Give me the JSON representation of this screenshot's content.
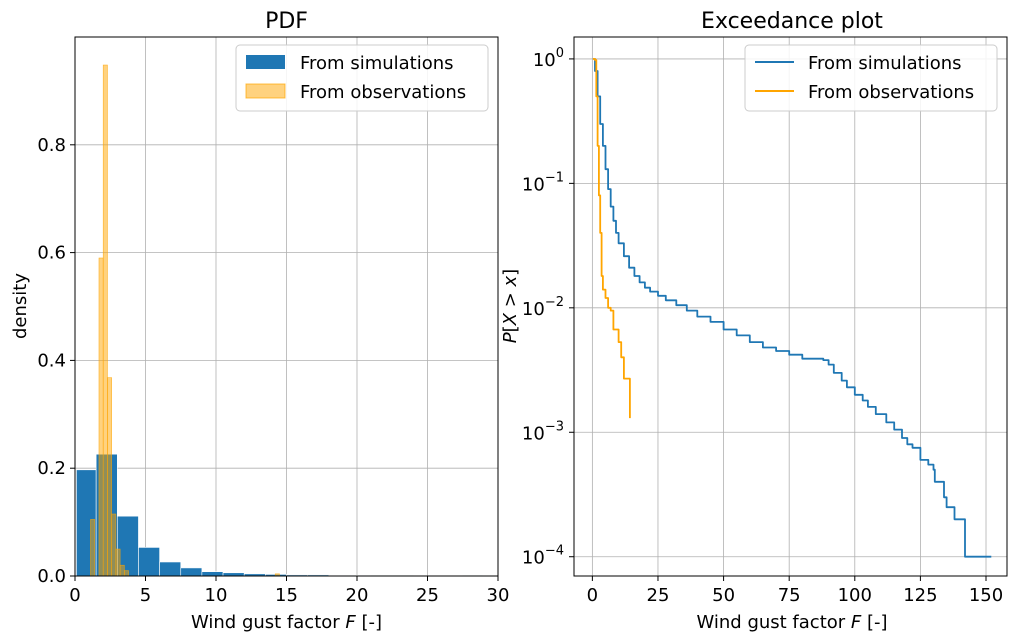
{
  "chart_data": [
    {
      "type": "bar",
      "title": "PDF",
      "xlabel": "Wind gust factor F [-]",
      "ylabel": "density",
      "xlim": [
        0,
        30
      ],
      "ylim": [
        0,
        1.0
      ],
      "xticks": [
        0,
        5,
        10,
        15,
        20,
        25,
        30
      ],
      "xtick_labels": [
        "0",
        "5",
        "10",
        "15",
        "20",
        "25",
        "30"
      ],
      "yticks": [
        0,
        0.2,
        0.4,
        0.6,
        0.8
      ],
      "ytick_labels": [
        "0.0",
        "0.2",
        "0.4",
        "0.6",
        "0.8"
      ],
      "grid": true,
      "legend_position": "top-right",
      "series": [
        {
          "name": "From simulations",
          "color": "#1f77b4",
          "bins": [
            {
              "x0": 0.1,
              "x1": 1.5,
              "y": 0.197
            },
            {
              "x0": 1.5,
              "x1": 3.0,
              "y": 0.226
            },
            {
              "x0": 3.0,
              "x1": 4.5,
              "y": 0.111
            },
            {
              "x0": 4.5,
              "x1": 6.0,
              "y": 0.053
            },
            {
              "x0": 6.0,
              "x1": 7.5,
              "y": 0.026
            },
            {
              "x0": 7.5,
              "x1": 9.0,
              "y": 0.015
            },
            {
              "x0": 9.0,
              "x1": 10.5,
              "y": 0.008
            },
            {
              "x0": 10.5,
              "x1": 12.0,
              "y": 0.006
            },
            {
              "x0": 12.0,
              "x1": 13.5,
              "y": 0.004
            },
            {
              "x0": 13.5,
              "x1": 15.0,
              "y": 0.003
            },
            {
              "x0": 15.0,
              "x1": 16.5,
              "y": 0.002
            },
            {
              "x0": 16.5,
              "x1": 18.0,
              "y": 0.002
            },
            {
              "x0": 18.0,
              "x1": 19.5,
              "y": 0.0015
            },
            {
              "x0": 19.5,
              "x1": 21.0,
              "y": 0.0015
            },
            {
              "x0": 21.0,
              "x1": 22.5,
              "y": 0.001
            },
            {
              "x0": 22.5,
              "x1": 24.0,
              "y": 0.001
            },
            {
              "x0": 27.5,
              "x1": 28.9,
              "y": 0.001
            }
          ]
        },
        {
          "name": "From observations",
          "color": "#ffa500",
          "bins": [
            {
              "x0": 1.1,
              "x1": 1.4,
              "y": 0.105
            },
            {
              "x0": 1.4,
              "x1": 1.7,
              "y": 0.0
            },
            {
              "x0": 1.7,
              "x1": 2.0,
              "y": 0.59
            },
            {
              "x0": 2.0,
              "x1": 2.3,
              "y": 0.948
            },
            {
              "x0": 2.3,
              "x1": 2.6,
              "y": 0.368
            },
            {
              "x0": 2.6,
              "x1": 2.9,
              "y": 0.115
            },
            {
              "x0": 2.9,
              "x1": 3.2,
              "y": 0.05
            },
            {
              "x0": 3.2,
              "x1": 3.5,
              "y": 0.02
            },
            {
              "x0": 3.5,
              "x1": 3.8,
              "y": 0.01
            },
            {
              "x0": 14.2,
              "x1": 14.5,
              "y": 0.004
            }
          ]
        }
      ]
    },
    {
      "type": "line",
      "title": "Exceedance plot",
      "xlabel": "Wind gust factor F [-]",
      "ylabel": "P[X > x]",
      "xscale": "linear",
      "yscale": "log",
      "xlim": [
        -7,
        158
      ],
      "ylim": [
        7e-05,
        1.5
      ],
      "xticks": [
        0,
        25,
        50,
        75,
        100,
        125,
        150
      ],
      "xtick_labels": [
        "0",
        "25",
        "50",
        "75",
        "100",
        "125",
        "150"
      ],
      "yticks": [
        0.0001,
        0.001,
        0.01,
        0.1,
        1
      ],
      "ytick_labels": [
        "10^-4",
        "10^-3",
        "10^-2",
        "10^-1",
        "10^0"
      ],
      "grid": true,
      "legend_position": "top-right",
      "series": [
        {
          "name": "From simulations",
          "color": "#1f77b4",
          "x": [
            0.2,
            1,
            2,
            3,
            4,
            5,
            6,
            7,
            8,
            9,
            10,
            12,
            14,
            16,
            18,
            20,
            22,
            25,
            28,
            32,
            36,
            40,
            45,
            50,
            55,
            60,
            65,
            70,
            75,
            80,
            85,
            88,
            90,
            92,
            95,
            97,
            100,
            103,
            105,
            108,
            112,
            115,
            118,
            120,
            122,
            125,
            128,
            130,
            130.5,
            132,
            134,
            135,
            138,
            141,
            142,
            150,
            152
          ],
          "y": [
            1.0,
            0.8,
            0.5,
            0.3,
            0.2,
            0.13,
            0.09,
            0.065,
            0.05,
            0.04,
            0.033,
            0.026,
            0.021,
            0.018,
            0.016,
            0.0145,
            0.0135,
            0.0125,
            0.0115,
            0.0105,
            0.0095,
            0.0085,
            0.0077,
            0.0067,
            0.006,
            0.0053,
            0.0048,
            0.0045,
            0.0042,
            0.0039,
            0.0039,
            0.0038,
            0.0035,
            0.003,
            0.0026,
            0.0023,
            0.002,
            0.0018,
            0.0016,
            0.0014,
            0.0012,
            0.00105,
            0.0009,
            0.0008,
            0.00075,
            0.0006,
            0.00055,
            0.0005,
            0.0004,
            0.0004,
            0.0003,
            0.00025,
            0.0002,
            0.0002,
            0.0001,
            0.0001,
            0.0001
          ]
        },
        {
          "name": "From observations",
          "color": "#ffa500",
          "x": [
            0.2,
            1,
            1.5,
            2,
            2.5,
            3,
            3.5,
            4,
            5,
            6,
            7,
            8,
            9,
            10,
            11,
            12,
            13,
            14,
            14.3
          ],
          "y": [
            1.0,
            0.98,
            0.5,
            0.2,
            0.08,
            0.04,
            0.018,
            0.014,
            0.012,
            0.01,
            0.0095,
            0.0067,
            0.0067,
            0.0053,
            0.004,
            0.0027,
            0.0027,
            0.0027,
            0.0013
          ]
        }
      ]
    }
  ]
}
